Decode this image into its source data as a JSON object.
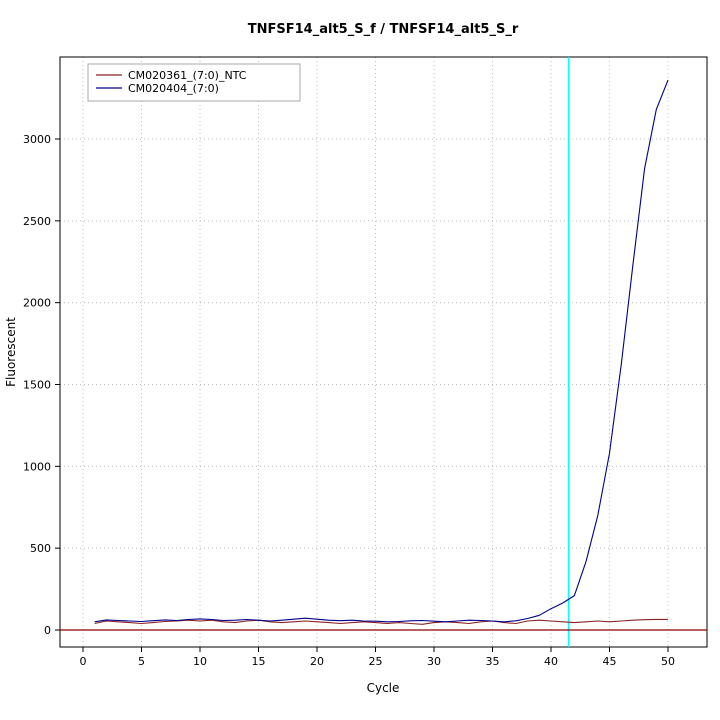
{
  "chart_data": {
    "type": "line",
    "title": "TNFSF14_alt5_S_f / TNFSF14_alt5_S_r",
    "xlabel": "Cycle",
    "ylabel": "Fluorescent",
    "xlim": [
      0,
      50
    ],
    "ylim": [
      0,
      3000
    ],
    "x_ticks": [
      0,
      5,
      10,
      15,
      20,
      25,
      30,
      35,
      40,
      45,
      50
    ],
    "y_ticks": [
      0,
      500,
      1000,
      1500,
      2000,
      2500,
      3000
    ],
    "grid": "dotted",
    "legend_position": "top-left",
    "threshold_line_y": 0,
    "threshold_cycle_x": 41.5,
    "colors": {
      "grid": "#bbbbbb",
      "axis": "#000000",
      "threshold_line": "#8b0000",
      "threshold_cycle_line": "#00ffff",
      "legend_border": "#aaaaaa"
    },
    "series": [
      {
        "name": "CM020361_(7:0)_NTC",
        "color": "#8b2323",
        "x": [
          1,
          2,
          3,
          4,
          5,
          6,
          7,
          8,
          9,
          10,
          11,
          12,
          13,
          14,
          15,
          16,
          17,
          18,
          19,
          20,
          21,
          22,
          23,
          24,
          25,
          26,
          27,
          28,
          29,
          30,
          31,
          32,
          33,
          34,
          35,
          36,
          37,
          38,
          39,
          40,
          41,
          42,
          43,
          44,
          45,
          46,
          47,
          48,
          49,
          50
        ],
        "values": [
          40,
          55,
          50,
          45,
          40,
          45,
          52,
          55,
          60,
          55,
          60,
          50,
          45,
          55,
          60,
          50,
          45,
          50,
          55,
          50,
          45,
          40,
          45,
          50,
          45,
          40,
          45,
          40,
          35,
          45,
          50,
          45,
          40,
          50,
          55,
          45,
          40,
          55,
          60,
          55,
          50,
          45,
          50,
          55,
          50,
          55,
          60,
          63,
          65,
          65
        ]
      },
      {
        "name": "CM020404_(7:0)",
        "color": "#00008b",
        "x": [
          1,
          2,
          3,
          4,
          5,
          6,
          7,
          8,
          9,
          10,
          11,
          12,
          13,
          14,
          15,
          16,
          17,
          18,
          19,
          20,
          21,
          22,
          23,
          24,
          25,
          26,
          27,
          28,
          29,
          30,
          31,
          32,
          33,
          34,
          35,
          36,
          37,
          38,
          39,
          40,
          41,
          42,
          43,
          44,
          45,
          46,
          47,
          48,
          49,
          50
        ],
        "values": [
          50,
          62,
          58,
          55,
          52,
          57,
          62,
          58,
          64,
          68,
          64,
          58,
          60,
          64,
          60,
          55,
          60,
          66,
          72,
          66,
          60,
          57,
          60,
          55,
          54,
          50,
          52,
          56,
          58,
          54,
          50,
          55,
          60,
          58,
          55,
          50,
          56,
          70,
          90,
          130,
          165,
          210,
          420,
          700,
          1080,
          1620,
          2230,
          2820,
          3180,
          3360
        ]
      }
    ]
  }
}
